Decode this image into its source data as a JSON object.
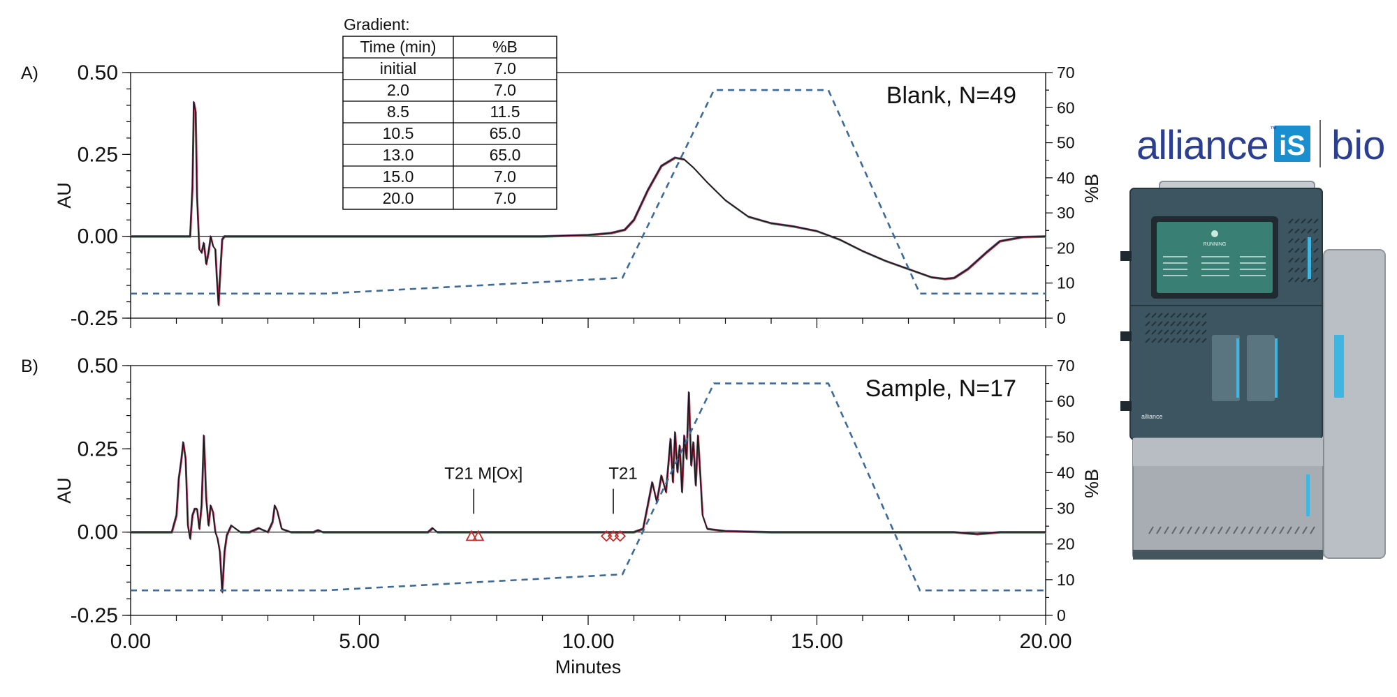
{
  "gradient_table": {
    "title": "Gradient:",
    "headers": [
      "Time (min)",
      "%B"
    ],
    "rows": [
      [
        "initial",
        "7.0"
      ],
      [
        "2.0",
        "7.0"
      ],
      [
        "8.5",
        "11.5"
      ],
      [
        "10.5",
        "65.0"
      ],
      [
        "13.0",
        "65.0"
      ],
      [
        "15.0",
        "7.0"
      ],
      [
        "20.0",
        "7.0"
      ]
    ]
  },
  "logo": {
    "brand": "alliance",
    "badge": "iS",
    "tm": "™",
    "suffix": "bio"
  },
  "instrument": {
    "name_plate": "alliance",
    "screen_status": "RUNNING"
  },
  "colors": {
    "gradient_line": "#3d6a98",
    "trace_dark": "#1a1a1a",
    "trace_red": "#c0324a",
    "trace_purple": "#7a4b8a",
    "trace_green": "#4a8a6a",
    "marker": "#c42b2b",
    "logo_blue": "#2b3f8e",
    "badge_blue": "#1a8fd0"
  },
  "chart_data": [
    {
      "type": "line",
      "panel_label": "A)",
      "run_label": "Blank, N=49",
      "xlabel": "",
      "ylabel": "AU",
      "y2label": "%B",
      "xlim": [
        0,
        20
      ],
      "ylim": [
        -0.25,
        0.5
      ],
      "y2lim": [
        0,
        70
      ],
      "x_ticks_labeled": false,
      "yticks": [
        "0.50",
        "0.25",
        "0.00",
        "-0.25"
      ],
      "y2ticks": [
        "70",
        "60",
        "50",
        "40",
        "30",
        "20",
        "10",
        "0"
      ],
      "series": [
        {
          "role": "trace",
          "x": [
            0,
            0.5,
            1.0,
            1.2,
            1.3,
            1.35,
            1.38,
            1.42,
            1.45,
            1.5,
            1.55,
            1.6,
            1.65,
            1.7,
            1.75,
            1.8,
            1.85,
            1.88,
            1.92,
            1.95,
            2.0,
            2.05,
            2.2,
            3,
            5,
            7,
            9,
            10,
            10.5,
            10.8,
            11.0,
            11.3,
            11.6,
            11.9,
            12.1,
            12.3,
            12.6,
            13.0,
            13.5,
            14.0,
            14.5,
            15.0,
            15.5,
            16.0,
            16.5,
            17.0,
            17.5,
            17.8,
            18.0,
            18.3,
            18.7,
            19.0,
            19.5,
            20.0
          ],
          "y": [
            0.0,
            0.0,
            0.0,
            0.0,
            0.0,
            0.15,
            0.41,
            0.38,
            0.12,
            -0.04,
            -0.05,
            -0.02,
            -0.085,
            -0.05,
            0.0,
            -0.03,
            -0.04,
            -0.12,
            -0.21,
            -0.13,
            -0.01,
            0.0,
            0.0,
            0.0,
            0.0,
            0.0,
            0.0,
            0.004,
            0.01,
            0.02,
            0.05,
            0.14,
            0.215,
            0.24,
            0.235,
            0.21,
            0.165,
            0.11,
            0.06,
            0.04,
            0.03,
            0.016,
            -0.01,
            -0.045,
            -0.075,
            -0.1,
            -0.125,
            -0.13,
            -0.127,
            -0.1,
            -0.05,
            -0.015,
            -0.002,
            0.0
          ]
        },
        {
          "role": "gradient",
          "x": [
            0,
            4.25,
            10.75,
            12.75,
            15.25,
            17.25,
            20
          ],
          "y": [
            7,
            7,
            11.5,
            65,
            65,
            7,
            7
          ]
        }
      ],
      "annotations": []
    },
    {
      "type": "line",
      "panel_label": "B)",
      "run_label": "Sample, N=17",
      "xlabel": "Minutes",
      "ylabel": "AU",
      "y2label": "%B",
      "xlim": [
        0,
        20
      ],
      "ylim": [
        -0.25,
        0.5
      ],
      "y2lim": [
        0,
        70
      ],
      "x_ticks_labeled": true,
      "xticks": [
        "0.00",
        "5.00",
        "10.00",
        "15.00",
        "20.00"
      ],
      "yticks": [
        "0.50",
        "0.25",
        "0.00",
        "-0.25"
      ],
      "y2ticks": [
        "70",
        "60",
        "50",
        "40",
        "30",
        "20",
        "10",
        "0"
      ],
      "series": [
        {
          "role": "trace",
          "x": [
            0,
            0.9,
            1.0,
            1.05,
            1.1,
            1.15,
            1.2,
            1.25,
            1.3,
            1.35,
            1.4,
            1.45,
            1.5,
            1.55,
            1.6,
            1.65,
            1.7,
            1.75,
            1.8,
            1.85,
            1.9,
            1.95,
            2.0,
            2.05,
            2.1,
            2.2,
            2.3,
            2.4,
            2.6,
            2.8,
            3.0,
            3.1,
            3.15,
            3.2,
            3.3,
            3.5,
            4.0,
            4.1,
            4.2,
            5.0,
            6.5,
            6.6,
            6.7,
            7.0,
            8.0,
            9.0,
            10.0,
            10.4,
            10.6,
            11.0,
            11.2,
            11.3,
            11.4,
            11.5,
            11.6,
            11.7,
            11.8,
            11.85,
            11.9,
            11.95,
            12.0,
            12.05,
            12.1,
            12.15,
            12.2,
            12.25,
            12.3,
            12.35,
            12.4,
            12.5,
            12.6,
            13.0,
            14.0,
            15.0,
            16.0,
            17.0,
            18.0,
            18.5,
            19.0,
            19.5,
            20.0
          ],
          "y": [
            0.0,
            0.0,
            0.05,
            0.16,
            0.21,
            0.27,
            0.22,
            0.02,
            -0.02,
            0.05,
            0.07,
            0.07,
            0.01,
            0.08,
            0.29,
            0.1,
            0.02,
            0.08,
            0.06,
            0.0,
            -0.02,
            -0.06,
            -0.18,
            -0.06,
            -0.01,
            0.02,
            0.01,
            0.0,
            0.0,
            0.012,
            0.0,
            0.03,
            0.08,
            0.065,
            0.01,
            0.0,
            0.0,
            0.006,
            0.0,
            0.0,
            0.0,
            0.012,
            0.0,
            0.0,
            0.0,
            0.0,
            0.0,
            0.0,
            0.0,
            0.0,
            0.01,
            0.08,
            0.15,
            0.09,
            0.17,
            0.12,
            0.28,
            0.15,
            0.3,
            0.18,
            0.26,
            0.12,
            0.29,
            0.22,
            0.42,
            0.2,
            0.27,
            0.14,
            0.29,
            0.05,
            0.01,
            0.003,
            0.0,
            0.0,
            0.0,
            0.0,
            0.0,
            -0.006,
            0.0,
            0.0,
            0.0
          ]
        },
        {
          "role": "gradient",
          "x": [
            0,
            4.25,
            10.75,
            12.75,
            15.25,
            17.25,
            20
          ],
          "y": [
            7,
            7,
            11.5,
            65,
            65,
            7,
            7
          ]
        }
      ],
      "annotations": [
        {
          "text": "T21 M[Ox]",
          "x": 7.5,
          "marker": "triangle",
          "marker_x": [
            7.45,
            7.6
          ]
        },
        {
          "text": "T21",
          "x": 10.55,
          "marker": "diamond",
          "marker_x": [
            10.4,
            10.55,
            10.7
          ]
        }
      ]
    }
  ]
}
